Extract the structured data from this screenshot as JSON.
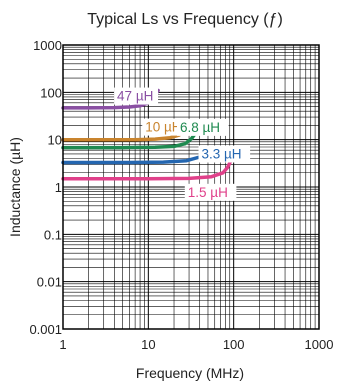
{
  "chart_data": {
    "type": "line",
    "title": "Typical Ls vs Frequency (ƒ)",
    "xlabel": "Frequency (MHz)",
    "ylabel": "Inductance (µH)",
    "x_scale": "log",
    "y_scale": "log",
    "xlim": [
      1,
      1000
    ],
    "ylim": [
      0.001,
      1000
    ],
    "x_ticks": [
      {
        "value": 1,
        "label": "1"
      },
      {
        "value": 10,
        "label": "10"
      },
      {
        "value": 100,
        "label": "100"
      },
      {
        "value": 1000,
        "label": "1000"
      }
    ],
    "y_ticks": [
      {
        "value": 1000,
        "label": "1000"
      },
      {
        "value": 100,
        "label": "100"
      },
      {
        "value": 10,
        "label": "10"
      },
      {
        "value": 1,
        "label": "1"
      },
      {
        "value": 0.1,
        "label": "0.1"
      },
      {
        "value": 0.01,
        "label": "0.01"
      },
      {
        "value": 0.001,
        "label": "0.001"
      }
    ],
    "grid": true,
    "series": [
      {
        "name": "47 µH",
        "color": "#8a4fa3",
        "x": [
          1,
          2,
          4,
          6,
          8,
          10,
          11.5,
          13
        ],
        "y": [
          47,
          47,
          47.5,
          49,
          52,
          60,
          75,
          110
        ]
      },
      {
        "name": "10 µH",
        "color": "#c9842e",
        "x": [
          1,
          3,
          7,
          12,
          18,
          23,
          27,
          30
        ],
        "y": [
          10,
          10,
          10,
          10.3,
          11,
          12.5,
          16,
          23
        ]
      },
      {
        "name": "6.8 µH",
        "color": "#1f8a50",
        "x": [
          1,
          5,
          12,
          20,
          27,
          32,
          35
        ],
        "y": [
          6.8,
          6.8,
          6.9,
          7.2,
          8.2,
          10.5,
          13
        ]
      },
      {
        "name": "3.3 µH",
        "color": "#2466b0",
        "x": [
          1,
          6,
          15,
          28,
          40,
          48,
          54
        ],
        "y": [
          3.3,
          3.3,
          3.35,
          3.6,
          4.3,
          5.5,
          6.8
        ]
      },
      {
        "name": "1.5 µH",
        "color": "#e0408a",
        "x": [
          1,
          10,
          30,
          55,
          75,
          85,
          92
        ],
        "y": [
          1.5,
          1.5,
          1.52,
          1.65,
          2.0,
          2.6,
          3.5
        ]
      }
    ]
  }
}
